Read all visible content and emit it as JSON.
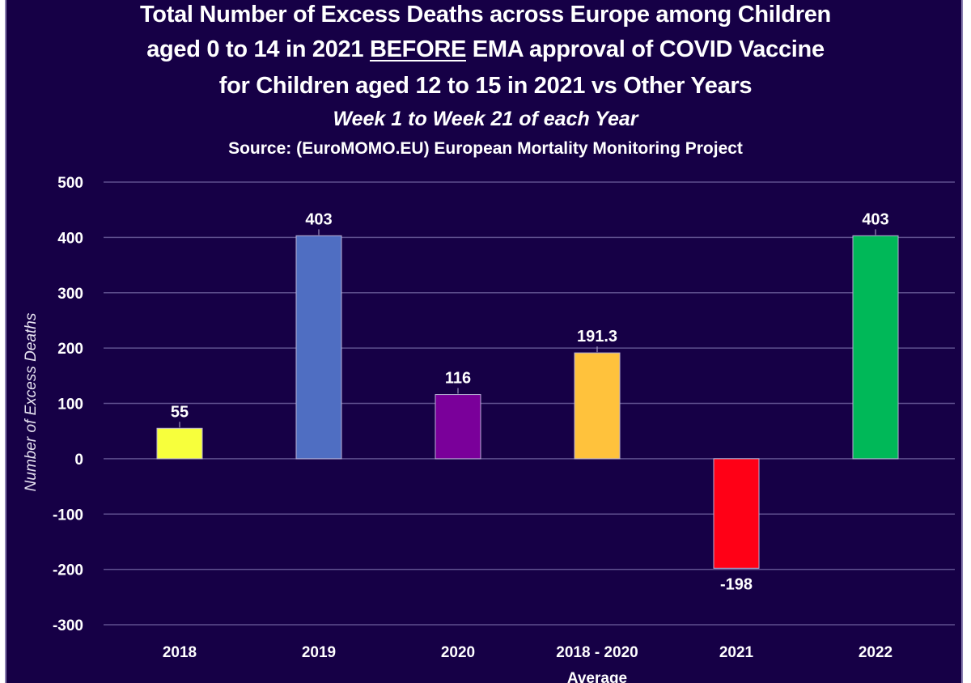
{
  "chart_data": {
    "type": "bar",
    "title_lines": [
      "Total Number of Excess Deaths across Europe among Children",
      "aged 0 to 14 in 2021 ",
      "BEFORE",
      " EMA approval of COVID Vaccine",
      "for Children aged 12 to 15 in 2021 vs Other Years"
    ],
    "title": "Total Number of Excess Deaths across Europe among Children aged 0 to 14 in 2021 BEFORE EMA approval of COVID Vaccine for Children aged 12 to 15 in 2021 vs Other Years",
    "subtitle": "Week 1 to Week 21 of each Year",
    "source": "Source: (EuroMOMO.EU) European Mortality Monitoring Project",
    "xlabel": "",
    "ylabel": "Number of Excess Deaths",
    "ylim": [
      -300,
      500
    ],
    "yticks": [
      500,
      400,
      300,
      200,
      100,
      0,
      -100,
      -200,
      -300
    ],
    "grid": true,
    "legend": "none",
    "categories": [
      {
        "label": [
          "2018"
        ],
        "value": 55,
        "data_label": "55",
        "color": "#f7ff3c"
      },
      {
        "label": [
          "2019"
        ],
        "value": 403,
        "data_label": "403",
        "color": "#4f6ec2"
      },
      {
        "label": [
          "2020"
        ],
        "value": 116,
        "data_label": "116",
        "color": "#7a009a"
      },
      {
        "label": [
          "2018 - 2020",
          "Average"
        ],
        "value": 191.3,
        "data_label": "191.3",
        "color": "#ffc23c"
      },
      {
        "label": [
          "2021"
        ],
        "value": -198,
        "data_label": "-198",
        "color": "#ff0016"
      },
      {
        "label": [
          "2022"
        ],
        "value": 403,
        "data_label": "403",
        "color": "#00b858"
      }
    ],
    "values": [
      55,
      403,
      116,
      191.3,
      -198,
      403
    ]
  },
  "colors": {
    "background": "#160046",
    "gridline": "#5e4f8e",
    "text": "#ffffff"
  }
}
